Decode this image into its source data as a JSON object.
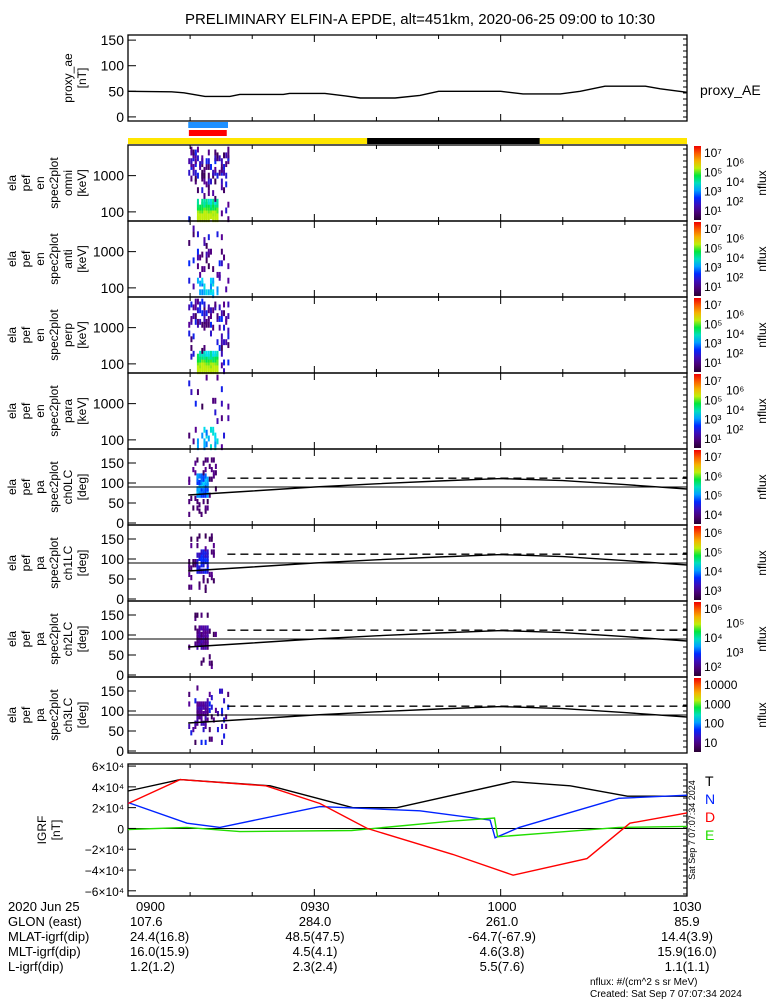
{
  "title": "PRELIMINARY ELFIN-A EPDE, alt=451km, 2020-06-25 09:00 to 10:30",
  "colors": {
    "axis": "#000000",
    "orbit_day": "#ffe600",
    "orbit_night": "#000000",
    "bar_blue": "#1e90ff",
    "bar_red": "#ff0000",
    "total": "#000000",
    "north": "#0022ff",
    "east": "#22dd00",
    "down": "#ff0000"
  },
  "proxy_panel": {
    "ylabel": [
      "proxy_ae",
      "[nT]"
    ],
    "legend": "proxy_AE",
    "yticks": [
      "150",
      "100",
      "50",
      "0"
    ]
  },
  "spec_panels": [
    {
      "ylabel": [
        "ela",
        "pef",
        "en",
        "spec2plot",
        "omni",
        "[keV]"
      ],
      "yticks": [
        "1000",
        "100"
      ],
      "cbar_label": "nflux",
      "cbar_ticks": [
        "10⁷",
        "10⁶",
        "10⁵",
        "10⁴",
        "10³",
        "10²",
        "10¹"
      ]
    },
    {
      "ylabel": [
        "ela",
        "pef",
        "en",
        "spec2plot",
        "anti",
        "[keV]"
      ],
      "yticks": [
        "1000",
        "100"
      ],
      "cbar_label": "nflux",
      "cbar_ticks": [
        "10⁷",
        "10⁶",
        "10⁵",
        "10⁴",
        "10³",
        "10²",
        "10¹"
      ]
    },
    {
      "ylabel": [
        "ela",
        "pef",
        "en",
        "spec2plot",
        "perp",
        "[keV]"
      ],
      "yticks": [
        "1000",
        "100"
      ],
      "cbar_label": "nflux",
      "cbar_ticks": [
        "10⁷",
        "10⁶",
        "10⁵",
        "10⁴",
        "10³",
        "10²",
        "10¹"
      ]
    },
    {
      "ylabel": [
        "ela",
        "pef",
        "en",
        "spec2plot",
        "para",
        "[keV]"
      ],
      "yticks": [
        "1000",
        "100"
      ],
      "cbar_label": "nflux",
      "cbar_ticks": [
        "10⁷",
        "10⁶",
        "10⁵",
        "10⁴",
        "10³",
        "10²",
        "10¹"
      ]
    }
  ],
  "pa_panels": [
    {
      "ylabel": [
        "ela",
        "pef",
        "pa",
        "spec2plot",
        "ch0LC",
        "[deg]"
      ],
      "yticks": [
        "150",
        "100",
        "50",
        "0"
      ],
      "cbar_label": "nflux",
      "cbar_ticks": [
        "10⁷",
        "10⁶",
        "10⁵",
        "10⁴"
      ]
    },
    {
      "ylabel": [
        "ela",
        "pef",
        "pa",
        "spec2plot",
        "ch1LC",
        "[deg]"
      ],
      "yticks": [
        "150",
        "100",
        "50",
        "0"
      ],
      "cbar_label": "nflux",
      "cbar_ticks": [
        "10⁶",
        "10⁵",
        "10⁴",
        "10³"
      ]
    },
    {
      "ylabel": [
        "ela",
        "pef",
        "pa",
        "spec2plot",
        "ch2LC",
        "[deg]"
      ],
      "yticks": [
        "150",
        "100",
        "50",
        "0"
      ],
      "cbar_label": "nflux",
      "cbar_ticks": [
        "10⁶",
        "10⁵",
        "10⁴",
        "10³",
        "10²"
      ]
    },
    {
      "ylabel": [
        "ela",
        "pef",
        "pa",
        "spec2plot",
        "ch3LC",
        "[deg]"
      ],
      "yticks": [
        "150",
        "100",
        "50",
        "0"
      ],
      "cbar_label": "nflux",
      "cbar_ticks": [
        "10000",
        "1000",
        "100",
        "10"
      ]
    }
  ],
  "igrf_panel": {
    "ylabel": [
      "IGRF",
      "[nT]"
    ],
    "yticks": [
      "6×10⁴",
      "4×10⁴",
      "2×10⁴",
      "0",
      "−2×10⁴",
      "−4×10⁴",
      "−6×10⁴"
    ],
    "legend": [
      "T",
      "N",
      "D",
      "E"
    ],
    "stamp": "Sat Sep  7 07:07:34 2024"
  },
  "annotation": {
    "row_labels": [
      "2020 Jun 25",
      "GLON (east)",
      "MLAT-igrf(dip)",
      "MLT-igrf(dip)",
      "L-igrf(dip)"
    ],
    "columns": [
      [
        "0900",
        "107.6",
        "24.4(16.8)",
        "16.0(15.9)",
        "1.2(1.2)"
      ],
      [
        "0930",
        "284.0",
        "48.5(47.5)",
        "4.5(4.1)",
        "2.3(2.4)"
      ],
      [
        "1000",
        "261.0",
        "-64.7(-67.9)",
        "4.6(3.8)",
        "5.5(7.6)"
      ],
      [
        "1030",
        "85.9",
        "14.4(3.9)",
        "15.9(16.0)",
        "1.1(1.1)"
      ]
    ],
    "units_note": "nflux: #/(cm^2 s sr MeV)",
    "created": "Created: Sat Sep  7 07:07:34 2024"
  },
  "chart_data": {
    "type": "line",
    "x_unit": "minutes after 2020-06-25 09:00",
    "xlim": [
      0,
      90
    ],
    "proxy_ae": {
      "ylim": [
        -8,
        160
      ],
      "x": [
        0,
        7,
        9,
        12.4,
        16.4,
        18,
        25,
        26,
        31.7,
        35,
        37.4,
        43,
        47,
        50,
        60,
        63.6,
        69.6,
        72.8,
        76.8,
        83.3,
        85.7,
        90
      ],
      "y": [
        50,
        49,
        47,
        40,
        40,
        44,
        44,
        46,
        46,
        41,
        37,
        37,
        42,
        50,
        50,
        45,
        45,
        50,
        60,
        60,
        55,
        48
      ]
    },
    "science_intervals": {
      "blue": [
        9.7,
        16.1
      ],
      "red": [
        9.8,
        15.9
      ]
    },
    "orbit_shading": [
      {
        "from": 0,
        "to": 38.5,
        "state": "day"
      },
      {
        "from": 38.5,
        "to": 66.3,
        "state": "night"
      },
      {
        "from": 66.3,
        "to": 90,
        "state": "day"
      }
    ],
    "spectrogram": {
      "ylim_keV": [
        56,
        7000
      ],
      "active_interval": [
        9.7,
        16.1
      ],
      "cbar_range": [
        1,
        10000000
      ]
    },
    "pitch_angle": {
      "ylim": [
        -5,
        185
      ],
      "reference_line": 90,
      "loss_cone": {
        "x": [
          9.7,
          20,
          30,
          40,
          50,
          60,
          70,
          80,
          90
        ],
        "y": [
          70,
          80,
          90,
          98,
          105,
          111,
          106,
          96,
          85
        ]
      },
      "anti_loss_cone": {
        "x": [
          16,
          90
        ],
        "y": [
          112,
          112
        ]
      }
    },
    "igrf": {
      "ylim": [
        -65000,
        62000
      ],
      "series": [
        {
          "name": "T",
          "x": [
            0,
            8.4,
            22.9,
            36.2,
            43.3,
            62,
            71.2,
            80.4,
            90
          ],
          "y": [
            36000,
            47000,
            41000,
            20000,
            20000,
            45000,
            41000,
            31000,
            31000
          ]
        },
        {
          "name": "N",
          "x": [
            0,
            9.5,
            14.8,
            30.9,
            47,
            58.3,
            59.1,
            63,
            79,
            90
          ],
          "y": [
            25000,
            5000,
            1000,
            21000,
            17000,
            8000,
            -9000,
            1000,
            29000,
            32000
          ]
        },
        {
          "name": "E",
          "x": [
            0,
            9.5,
            18,
            36,
            52,
            59,
            59.5,
            68.4,
            79,
            90
          ],
          "y": [
            -1000,
            1000,
            -3000,
            -2000,
            7000,
            10000,
            -8000,
            -4000,
            1000,
            2000
          ]
        },
        {
          "name": "D",
          "x": [
            0,
            8.4,
            22.2,
            30.9,
            38.5,
            52.3,
            62,
            73.9,
            80.8,
            90
          ],
          "y": [
            24000,
            47000,
            41000,
            24000,
            0,
            -25000,
            -45000,
            -29000,
            5000,
            15000
          ]
        }
      ]
    }
  }
}
